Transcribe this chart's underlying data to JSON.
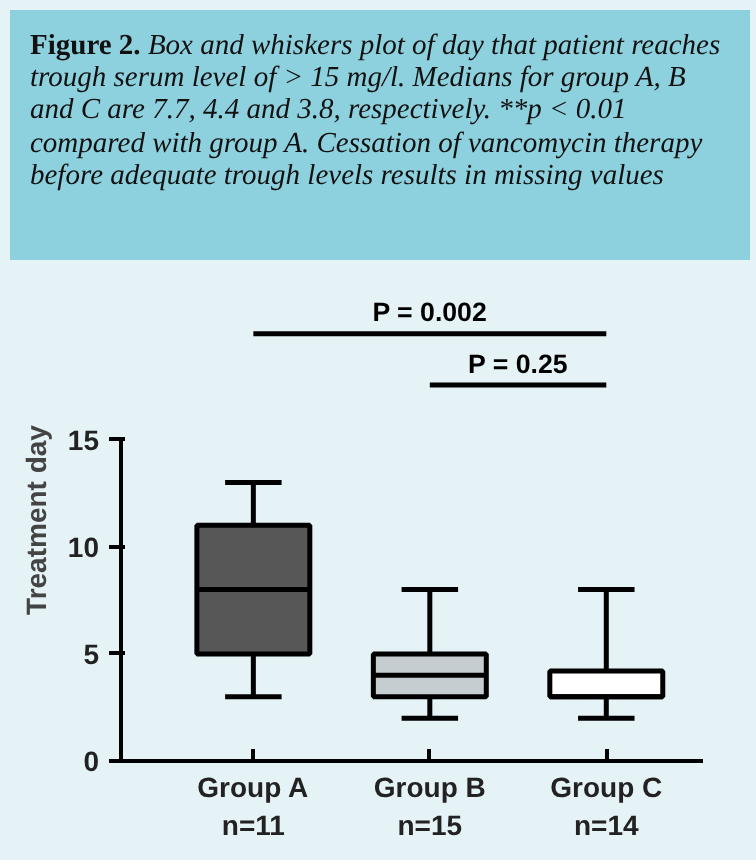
{
  "chart_data": {
    "type": "box",
    "title": "Figure 2.",
    "subtitle": "Box and whiskers plot of day that patient reaches trough serum level of > 15 mg/l. Medians for group A, B and C are 7.7, 4.4 and 3.8, respectively. **p < 0.01 compared with group A. Cessation of vancomycin therapy before adequate trough levels results in missing values",
    "ylabel": "Treatment day",
    "categories": [
      "Group A\nn=11",
      "Group B\nn=15",
      "Group C\nn=14"
    ],
    "colors": [
      "#575757",
      "#c6cdd0",
      "#ffffff"
    ],
    "boxes": [
      {
        "low": 3,
        "q1": 5,
        "median": 8,
        "q3": 11,
        "high": 13
      },
      {
        "low": 2,
        "q1": 3,
        "median": 4,
        "q3": 5,
        "high": 8
      },
      {
        "low": 2,
        "q1": 3,
        "median": 3,
        "q3": 4.2,
        "high": 8
      }
    ],
    "ylim": [
      0,
      15
    ],
    "yticks": [
      0,
      5,
      10,
      15
    ],
    "grid": false,
    "annotations": [
      "P = 0.002",
      "P = 0.25"
    ]
  }
}
